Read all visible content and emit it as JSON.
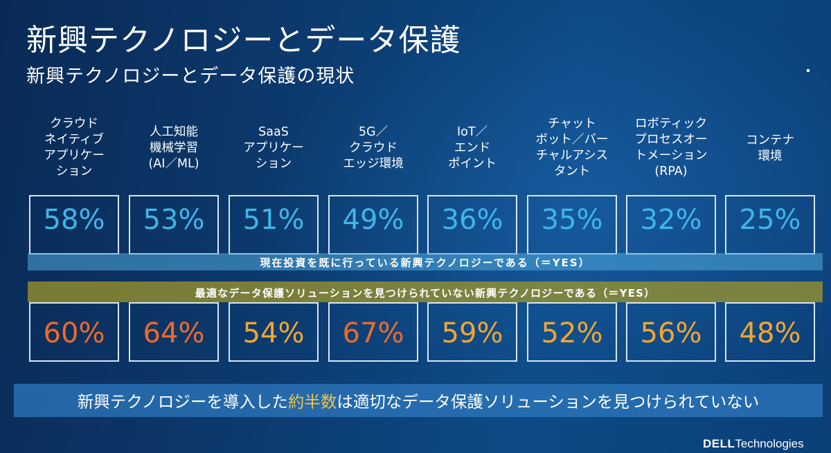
{
  "title": "新興テクノロジーとデータ保護",
  "subtitle": "新興テクノロジーとデータ保護の現状",
  "categories": [
    {
      "label_lines": [
        "クラウド",
        "ネイティブ",
        "アプリケー",
        "ション"
      ],
      "investing_pct": "58%",
      "no_solution_pct": "60%"
    },
    {
      "label_lines": [
        "人工知能",
        "機械学習",
        "(AI／ML)"
      ],
      "investing_pct": "53%",
      "no_solution_pct": "64%"
    },
    {
      "label_lines": [
        "SaaS",
        "アプリケー",
        "ション"
      ],
      "investing_pct": "51%",
      "no_solution_pct": "54%"
    },
    {
      "label_lines": [
        "5G／",
        "クラウド",
        "エッジ環境"
      ],
      "investing_pct": "49%",
      "no_solution_pct": "67%"
    },
    {
      "label_lines": [
        "IoT／",
        "エンド",
        "ポイント"
      ],
      "investing_pct": "36%",
      "no_solution_pct": "59%"
    },
    {
      "label_lines": [
        "チャット",
        "ボット／バー",
        "チャルアシス",
        "タント"
      ],
      "investing_pct": "35%",
      "no_solution_pct": "52%"
    },
    {
      "label_lines": [
        "ロボティック",
        "プロセスオー",
        "トメーション",
        "(RPA)"
      ],
      "investing_pct": "32%",
      "no_solution_pct": "56%"
    },
    {
      "label_lines": [
        "コンテナ",
        "環境"
      ],
      "investing_pct": "25%",
      "no_solution_pct": "48%"
    }
  ],
  "band_investing": "現在投資を既に行っている新興テクノロジーである（＝YES）",
  "band_no_solution": "最適なデータ保護ソリューションを見つけられていない新興テクノロジーである（＝YES）",
  "bottom_message": {
    "before": "新興テクノロジーを導入した",
    "highlight": "約半数",
    "after": "は適切なデータ保護ソリューションを見つけられていない"
  },
  "logo": {
    "brand": "DELL",
    "suffix": "Technologies"
  },
  "colors": {
    "investing_text": "#3fb6ea",
    "no_solution_text": [
      "#ee6a2a",
      "#ee6a2a",
      "#f2a630",
      "#ee6a2a",
      "#f2a630",
      "#f2a630",
      "#f2a630",
      "#f2a630"
    ],
    "highlight": "#f2c640"
  }
}
